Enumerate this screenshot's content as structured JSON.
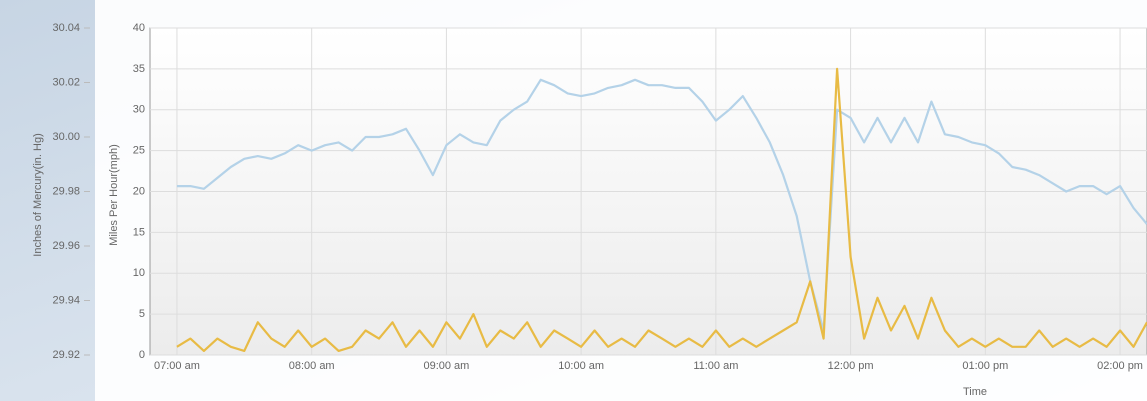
{
  "chart_data": {
    "type": "line",
    "x": [
      7.0,
      7.1,
      7.2,
      7.3,
      7.4,
      7.5,
      7.6,
      7.7,
      7.8,
      7.9,
      8.0,
      8.1,
      8.2,
      8.3,
      8.4,
      8.5,
      8.6,
      8.7,
      8.8,
      8.9,
      9.0,
      9.1,
      9.2,
      9.3,
      9.4,
      9.5,
      9.6,
      9.7,
      9.8,
      9.9,
      10.0,
      10.1,
      10.2,
      10.3,
      10.4,
      10.5,
      10.6,
      10.7,
      10.8,
      10.9,
      11.0,
      11.1,
      11.2,
      11.3,
      11.4,
      11.5,
      11.6,
      11.7,
      11.8,
      11.9,
      12.0,
      12.1,
      12.2,
      12.3,
      12.4,
      12.5,
      12.6,
      12.7,
      12.8,
      12.9,
      13.0,
      13.1,
      13.2,
      13.3,
      13.4,
      13.5,
      13.6,
      13.7,
      13.8,
      13.9,
      14.0,
      14.1,
      14.2
    ],
    "series": [
      {
        "color": "#b4d2e8",
        "values": [
          29.982,
          29.982,
          29.981,
          29.985,
          29.989,
          29.992,
          29.993,
          29.992,
          29.994,
          29.997,
          29.995,
          29.997,
          29.998,
          29.995,
          30.0,
          30.0,
          30.001,
          30.003,
          29.995,
          29.986,
          29.997,
          30.001,
          29.998,
          29.997,
          30.006,
          30.01,
          30.013,
          30.021,
          30.019,
          30.016,
          30.015,
          30.016,
          30.018,
          30.019,
          30.021,
          30.019,
          30.019,
          30.018,
          30.018,
          30.013,
          30.006,
          30.01,
          30.015,
          30.007,
          29.998,
          29.986,
          29.971,
          29.947,
          29.929,
          30.01,
          30.007,
          29.998,
          30.007,
          29.998,
          30.007,
          29.998,
          30.013,
          30.001,
          30.0,
          29.998,
          29.997,
          29.994,
          29.989,
          29.988,
          29.986,
          29.983,
          29.98,
          29.982,
          29.982,
          29.979,
          29.982,
          29.974,
          29.968
        ]
      },
      {
        "color": "#e8bb45",
        "axis": "y2",
        "values": [
          1,
          2,
          0.5,
          2,
          1,
          0.5,
          4,
          2,
          1,
          3,
          1,
          2,
          0.5,
          1,
          3,
          2,
          4,
          1,
          3,
          1,
          4,
          2,
          5,
          1,
          3,
          2,
          4,
          1,
          3,
          2,
          1,
          3,
          1,
          2,
          1,
          3,
          2,
          1,
          2,
          1,
          3,
          1,
          2,
          1,
          2,
          3,
          4,
          9,
          2,
          35,
          12,
          2,
          7,
          3,
          6,
          2,
          7,
          3,
          1,
          2,
          1,
          2,
          1,
          1,
          3,
          1,
          2,
          1,
          2,
          1,
          3,
          1,
          4
        ]
      }
    ],
    "xlim": [
      6.8,
      14.2
    ],
    "xticks": [
      {
        "value": 7,
        "label": "07:00 am"
      },
      {
        "value": 8,
        "label": "08:00 am"
      },
      {
        "value": 9,
        "label": "09:00 am"
      },
      {
        "value": 10,
        "label": "10:00 am"
      },
      {
        "value": 11,
        "label": "11:00 am"
      },
      {
        "value": 12,
        "label": "12:00 pm"
      },
      {
        "value": 13,
        "label": "01:00 pm"
      },
      {
        "value": 14,
        "label": "02:00 pm"
      }
    ],
    "ylim": [
      29.92,
      30.04
    ],
    "yticks": [
      29.92,
      29.94,
      29.96,
      29.98,
      {
        "value": 30,
        "label": "30.00"
      },
      30.02,
      30.04
    ],
    "y2lim": [
      0,
      40
    ],
    "y2ticks": [
      0,
      5,
      10,
      15,
      20,
      25,
      30,
      35,
      40
    ],
    "ylabel": "Inches of Mercury(in. Hg)",
    "y2label": "Miles Per Hour(mph)",
    "xlabel": "Time",
    "grid": true
  }
}
